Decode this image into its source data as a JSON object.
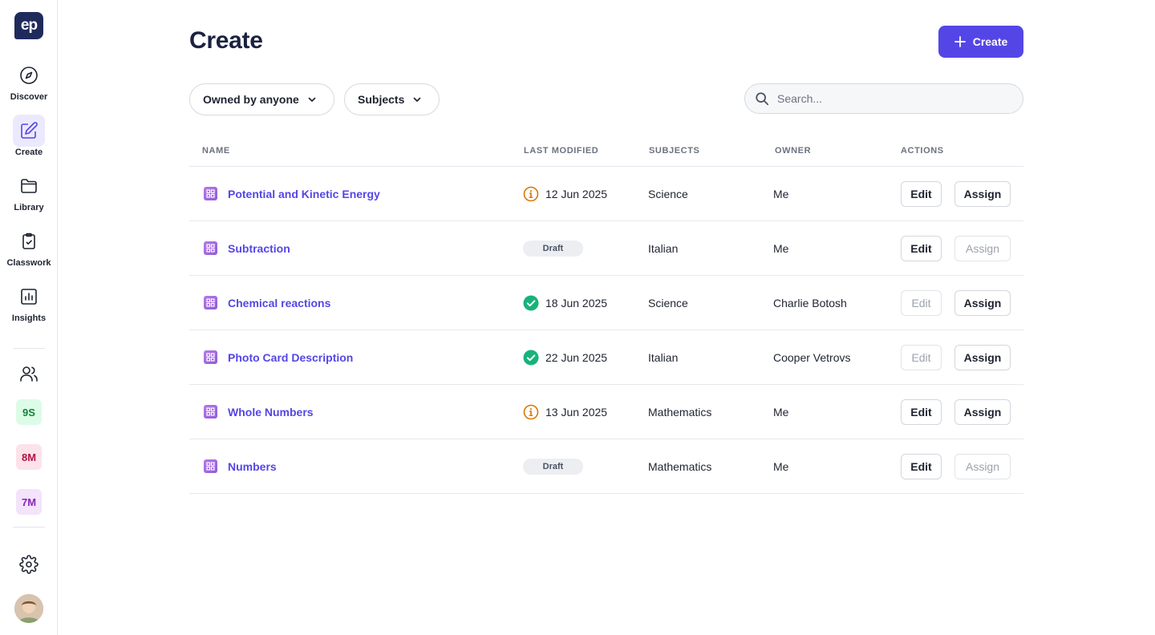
{
  "sidebar": {
    "logo": "ep",
    "nav": [
      {
        "label": "Discover",
        "icon": "compass-icon"
      },
      {
        "label": "Create",
        "icon": "edit-icon",
        "active": true
      },
      {
        "label": "Library",
        "icon": "folder-icon"
      },
      {
        "label": "Classwork",
        "icon": "clipboard-check-icon"
      },
      {
        "label": "Insights",
        "icon": "bar-chart-icon"
      }
    ],
    "classes": [
      {
        "label": "9S",
        "bg": "#dcfce7",
        "fg": "#15803d"
      },
      {
        "label": "8M",
        "bg": "#fde2ea",
        "fg": "#b0124a"
      },
      {
        "label": "7M",
        "bg": "#f3e3fb",
        "fg": "#8a23b8"
      }
    ],
    "icons": [
      "users-icon",
      "settings-icon",
      "user-avatar"
    ]
  },
  "header": {
    "title": "Create",
    "create_button": "Create"
  },
  "filters": {
    "owner": "Owned by anyone",
    "subjects": "Subjects",
    "search_placeholder": "Search..."
  },
  "table": {
    "columns": [
      "NAME",
      "LAST MODIFIED",
      "SUBJECTS",
      "OWNER",
      "ACTIONS"
    ],
    "rows": [
      {
        "name": "Potential and Kinetic Energy",
        "status": "warning",
        "modified": "12 Jun 2025",
        "subject": "Science",
        "owner": "Me",
        "edit": "Edit",
        "edit_enabled": true,
        "assign": "Assign",
        "assign_enabled": true
      },
      {
        "name": "Subtraction",
        "status": "draft",
        "modified": "Draft",
        "subject": "Italian",
        "owner": "Me",
        "edit": "Edit",
        "edit_enabled": true,
        "assign": "Assign",
        "assign_enabled": false
      },
      {
        "name": "Chemical reactions",
        "status": "success",
        "modified": "18 Jun 2025",
        "subject": "Science",
        "owner": "Charlie Botosh",
        "edit": "Edit",
        "edit_enabled": false,
        "assign": "Assign",
        "assign_enabled": true
      },
      {
        "name": "Photo Card Description",
        "status": "success",
        "modified": "22 Jun 2025",
        "subject": "Italian",
        "owner": "Cooper Vetrovs",
        "edit": "Edit",
        "edit_enabled": false,
        "assign": "Assign",
        "assign_enabled": true
      },
      {
        "name": "Whole Numbers",
        "status": "warning",
        "modified": "13 Jun 2025",
        "subject": "Mathematics",
        "owner": "Me",
        "edit": "Edit",
        "edit_enabled": true,
        "assign": "Assign",
        "assign_enabled": true
      },
      {
        "name": "Numbers",
        "status": "draft",
        "modified": "Draft",
        "subject": "Mathematics",
        "owner": "Me",
        "edit": "Edit",
        "edit_enabled": true,
        "assign": "Assign",
        "assign_enabled": false
      }
    ]
  },
  "colors": {
    "accent": "#5446e6",
    "warning": "#d97706",
    "success": "#16b37a",
    "navy": "#1f2a5c"
  }
}
